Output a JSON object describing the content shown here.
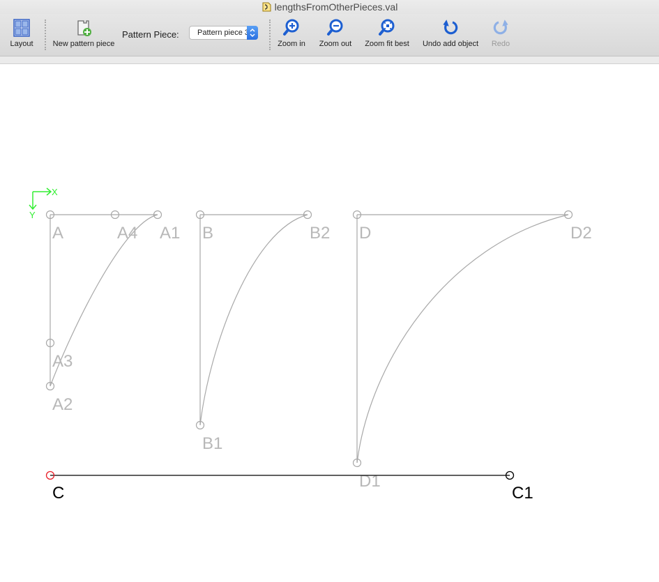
{
  "window": {
    "title": "lengthsFromOtherPieces.val"
  },
  "toolbar": {
    "layout_label": "Layout",
    "new_piece_label": "New pattern piece",
    "pattern_piece_label": "Pattern Piece:",
    "pattern_piece_value": "Pattern piece 3",
    "zoom_in_label": "Zoom in",
    "zoom_out_label": "Zoom out",
    "zoom_fit_label": "Zoom fit best",
    "undo_label": "Undo add object",
    "redo_label": "Redo"
  },
  "canvas": {
    "axis_x": "X",
    "axis_y": "Y",
    "points": {
      "A": "A",
      "A1": "A1",
      "A2": "A2",
      "A3": "A3",
      "A4": "A4",
      "B": "B",
      "B1": "B1",
      "B2": "B2",
      "D": "D",
      "D1": "D1",
      "D2": "D2",
      "C": "C",
      "C1": "C1"
    }
  },
  "colors": {
    "inactive": "#a8a8a8",
    "inactive_label": "#b8b8b8",
    "active": "#000000",
    "axis": "#33ee33",
    "base_point": "#e8202a",
    "icon_blue": "#1d5fd1"
  }
}
